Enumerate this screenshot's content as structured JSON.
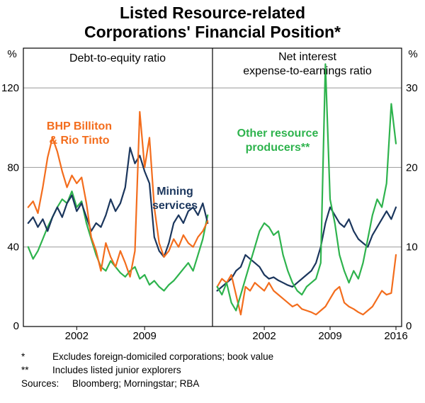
{
  "title": {
    "line1": "Listed Resource-related",
    "line2": "Corporations' Financial Position*"
  },
  "chart_data": {
    "type": "line",
    "title": "Listed Resource-related Corporations' Financial Position*",
    "grid_color": "#999999",
    "frame_color": "#000000",
    "labels": {
      "bhp": {
        "line1": "BHP Billiton",
        "line2": "& Rio Tinto",
        "color": "#f36d1d"
      },
      "mining": {
        "line1": "Mining",
        "line2": "services",
        "color": "#1b365d"
      },
      "other": {
        "line1": "Other resource",
        "line2": "producers**",
        "color": "#2eb34d"
      }
    },
    "panels": [
      {
        "id": "debt-to-equity",
        "title_lines": [
          "Debt-to-equity ratio"
        ],
        "unit": "%",
        "ylim": [
          0,
          140
        ],
        "yticks": [
          0,
          40,
          80,
          120
        ],
        "ytick_side": "left",
        "xlim": [
          1996.5,
          2016.0
        ],
        "xticks": [
          2002,
          2009
        ],
        "series": [
          {
            "name": "Other resource producers",
            "color": "#2eb34d",
            "x_start": 1997,
            "x_step": 0.5,
            "values": [
              40,
              34,
              38,
              44,
              50,
              55,
              60,
              64,
              62,
              68,
              60,
              63,
              52,
              44,
              36,
              30,
              28,
              33,
              30,
              27,
              25,
              28,
              30,
              24,
              26,
              21,
              23,
              20,
              18,
              21,
              23,
              26,
              29,
              32,
              28,
              36,
              44,
              56
            ]
          },
          {
            "name": "Mining services",
            "color": "#1b365d",
            "x_start": 1997,
            "x_step": 0.5,
            "values": [
              52,
              55,
              50,
              54,
              48,
              55,
              60,
              55,
              62,
              66,
              58,
              62,
              55,
              48,
              52,
              50,
              56,
              64,
              58,
              62,
              70,
              90,
              82,
              86,
              78,
              72,
              45,
              38,
              35,
              42,
              52,
              56,
              52,
              58,
              60,
              56,
              62,
              52
            ]
          },
          {
            "name": "BHP Billiton & Rio Tinto",
            "color": "#f36d1d",
            "x_start": 1997,
            "x_step": 0.5,
            "values": [
              60,
              63,
              57,
              70,
              85,
              95,
              88,
              78,
              70,
              76,
              72,
              75,
              62,
              45,
              38,
              28,
              42,
              35,
              30,
              38,
              32,
              25,
              38,
              108,
              80,
              95,
              60,
              42,
              35,
              38,
              44,
              40,
              46,
              42,
              40,
              45,
              48,
              53
            ]
          }
        ]
      },
      {
        "id": "net-interest-expense-to-earnings",
        "title_lines": [
          "Net interest",
          "expense-to-earnings ratio"
        ],
        "unit": "%",
        "ylim": [
          0,
          35
        ],
        "yticks": [
          0,
          10,
          20,
          30
        ],
        "ytick_side": "right",
        "xlim": [
          1996.5,
          2016.6
        ],
        "xticks": [
          2002,
          2009,
          2016
        ],
        "series": [
          {
            "name": "Mining services",
            "color": "#1b365d",
            "x_start": 1997,
            "x_step": 0.5,
            "values": [
              4.5,
              5,
              5.5,
              6,
              7,
              7.5,
              9,
              8.5,
              8,
              7.5,
              6.5,
              6,
              6.2,
              5.8,
              5.5,
              5.2,
              5,
              5.5,
              6,
              6.5,
              7,
              8,
              10,
              13,
              15,
              14,
              13,
              12.5,
              13.5,
              12,
              11,
              10.5,
              10,
              11.5,
              12.5,
              13.5,
              14.5,
              13.5,
              15
            ]
          },
          {
            "name": "BHP Billiton & Rio Tinto",
            "color": "#f36d1d",
            "x_start": 1997,
            "x_step": 0.5,
            "values": [
              5,
              6,
              5.5,
              6.5,
              4,
              1.5,
              5,
              4.5,
              5.5,
              5,
              4.5,
              5.5,
              4.5,
              4,
              3.5,
              3,
              2.5,
              2.8,
              2.2,
              2,
              1.8,
              1.5,
              2,
              2.5,
              3.5,
              4.5,
              5,
              3,
              2.5,
              2.2,
              1.8,
              1.5,
              2,
              2.5,
              3.5,
              4.5,
              4,
              4.2,
              9
            ]
          },
          {
            "name": "Other resource producers",
            "color": "#2eb34d",
            "x_start": 1997,
            "x_step": 0.5,
            "values": [
              5,
              4,
              5.5,
              3,
              2,
              4,
              6,
              8,
              10,
              12,
              13,
              12.5,
              11.5,
              12,
              9,
              7,
              5.5,
              4.5,
              4,
              5,
              5.5,
              6,
              8,
              33,
              16,
              13,
              9,
              7,
              5.5,
              7,
              6,
              8,
              11,
              14,
              16,
              15,
              18,
              28,
              23
            ]
          }
        ]
      }
    ]
  },
  "footnotes": [
    {
      "symbol": "*",
      "text": "Excludes foreign-domiciled corporations; book value"
    },
    {
      "symbol": "**",
      "text": "Includes listed junior explorers"
    }
  ],
  "sources": {
    "label": "Sources:",
    "text": "Bloomberg; Morningstar; RBA"
  }
}
